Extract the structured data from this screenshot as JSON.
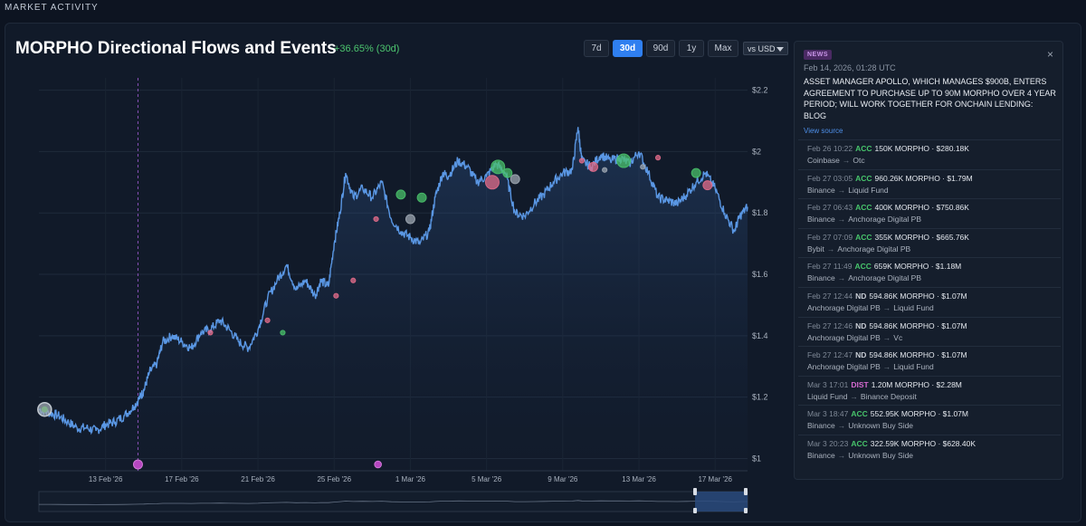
{
  "section_label": "MARKET ACTIVITY",
  "title": "MORPHO Directional Flows and Events",
  "change": "+36.65% (30d)",
  "ranges": [
    "7d",
    "30d",
    "90d",
    "1y",
    "Max"
  ],
  "active_range": "30d",
  "currency_select": "vs USD",
  "colors": {
    "price_line": "#5a97e4",
    "acc": "#47c46b",
    "dist": "#d46ad0",
    "accent": "#2f7ff0",
    "marker_pink": "#e26c8a",
    "marker_green": "#49c06a",
    "marker_gray": "#9ea7b1"
  },
  "news": {
    "badge": "NEWS",
    "date": "Feb 14, 2026, 01:28 UTC",
    "headline": "ASSET MANAGER APOLLO, WHICH MANAGES $900B, ENTERS AGREEMENT TO PURCHASE UP TO 90M MORPHO OVER 4 YEAR PERIOD; WILL WORK TOGETHER FOR ONCHAIN LENDING: BLOG",
    "source": "View source"
  },
  "events": [
    {
      "time": "Feb 26 10:22",
      "type": "ACC",
      "amount": "150K MORPHO · $280.18K",
      "from": "Coinbase",
      "to": "Otc"
    },
    {
      "time": "Feb 27 03:05",
      "type": "ACC",
      "amount": "960.26K MORPHO · $1.79M",
      "from": "Binance",
      "to": "Liquid Fund"
    },
    {
      "time": "Feb 27 06:43",
      "type": "ACC",
      "amount": "400K MORPHO · $750.86K",
      "from": "Binance",
      "to": "Anchorage Digital PB"
    },
    {
      "time": "Feb 27 07:09",
      "type": "ACC",
      "amount": "355K MORPHO · $665.76K",
      "from": "Bybit",
      "to": "Anchorage Digital PB"
    },
    {
      "time": "Feb 27 11:49",
      "type": "ACC",
      "amount": "659K MORPHO · $1.18M",
      "from": "Binance",
      "to": "Anchorage Digital PB"
    },
    {
      "time": "Feb 27 12:44",
      "type": "ND",
      "amount": "594.86K MORPHO · $1.07M",
      "from": "Anchorage Digital PB",
      "to": "Liquid Fund"
    },
    {
      "time": "Feb 27 12:46",
      "type": "ND",
      "amount": "594.86K MORPHO · $1.07M",
      "from": "Anchorage Digital PB",
      "to": "Vc"
    },
    {
      "time": "Feb 27 12:47",
      "type": "ND",
      "amount": "594.86K MORPHO · $1.07M",
      "from": "Anchorage Digital PB",
      "to": "Liquid Fund"
    },
    {
      "time": "Mar 3 17:01",
      "type": "DIST",
      "amount": "1.20M MORPHO · $2.28M",
      "from": "Liquid Fund",
      "to": "Binance Deposit"
    },
    {
      "time": "Mar 3 18:47",
      "type": "ACC",
      "amount": "552.95K MORPHO · $1.07M",
      "from": "Binance",
      "to": "Unknown Buy Side"
    },
    {
      "time": "Mar 3 20:23",
      "type": "ACC",
      "amount": "322.59K MORPHO · $628.40K",
      "from": "Binance",
      "to": "Unknown Buy Side"
    }
  ],
  "chart_data": {
    "type": "line",
    "title": "MORPHO Directional Flows and Events",
    "ylabel": "",
    "xlabel": "",
    "y_ticks": [
      "$2.2",
      "$2",
      "$1.8",
      "$1.6",
      "$1.4",
      "$1.2",
      "$1"
    ],
    "y_tick_values": [
      2.2,
      2.0,
      1.8,
      1.6,
      1.4,
      1.2,
      1.0
    ],
    "ylim": [
      0.96,
      2.24
    ],
    "x_ticks": [
      "13 Feb '26",
      "17 Feb '26",
      "21 Feb '26",
      "25 Feb '26",
      "1 Mar '26",
      "5 Mar '26",
      "9 Mar '26",
      "13 Mar '26",
      "17 Mar '26"
    ],
    "x_tick_values": [
      2,
      6,
      10,
      14,
      18,
      22,
      26,
      30,
      34
    ],
    "xlim": [
      -1.5,
      35.7
    ],
    "grid": true,
    "news_marker_x": 3.7,
    "series": [
      {
        "x": [
          -1.5,
          -1.0,
          -0.5,
          0.0,
          0.5,
          1.0,
          1.5,
          2.0,
          2.5,
          3.0,
          3.5,
          3.8,
          4.0,
          4.3,
          4.7,
          5.0,
          5.5,
          6.0,
          6.5,
          7.0,
          7.5,
          8.0,
          8.5,
          9.0,
          9.5,
          10.0,
          10.5,
          11.0,
          11.5,
          12.0,
          12.5,
          13.0,
          13.3,
          13.7,
          14.0,
          14.3,
          14.6,
          15.0,
          15.5,
          16.0,
          16.5,
          17.0,
          17.5,
          18.0,
          18.5,
          19.0,
          19.3,
          19.7,
          20.0,
          20.5,
          21.0,
          21.5,
          22.0,
          22.5,
          23.0,
          23.5,
          24.0,
          24.5,
          25.0,
          25.5,
          26.0,
          26.5,
          26.8,
          27.0,
          27.5,
          28.0,
          28.5,
          29.0,
          29.5,
          30.0,
          30.5,
          31.0,
          31.5,
          32.0,
          32.5,
          33.0,
          33.5,
          34.0,
          34.5,
          35.0,
          35.3,
          35.7
        ],
        "values": [
          1.16,
          1.15,
          1.14,
          1.12,
          1.1,
          1.1,
          1.09,
          1.11,
          1.12,
          1.14,
          1.17,
          1.2,
          1.22,
          1.28,
          1.31,
          1.38,
          1.4,
          1.38,
          1.36,
          1.41,
          1.42,
          1.45,
          1.42,
          1.38,
          1.36,
          1.42,
          1.52,
          1.58,
          1.63,
          1.55,
          1.58,
          1.53,
          1.58,
          1.56,
          1.7,
          1.8,
          1.93,
          1.85,
          1.88,
          1.85,
          1.9,
          1.78,
          1.74,
          1.72,
          1.7,
          1.74,
          1.85,
          1.93,
          1.92,
          1.97,
          1.95,
          1.9,
          1.92,
          1.96,
          1.93,
          1.8,
          1.79,
          1.83,
          1.86,
          1.9,
          1.93,
          1.94,
          2.08,
          1.97,
          1.95,
          1.99,
          1.97,
          1.98,
          1.96,
          2.0,
          1.93,
          1.85,
          1.84,
          1.83,
          1.86,
          1.9,
          1.93,
          1.88,
          1.8,
          1.74,
          1.79,
          1.82
        ]
      }
    ],
    "event_markers": [
      {
        "x": -1.2,
        "y": 1.16,
        "kind": "gray",
        "size": "large"
      },
      {
        "x": 7.5,
        "y": 1.41,
        "kind": "pink",
        "size": "small"
      },
      {
        "x": 10.5,
        "y": 1.45,
        "kind": "pink",
        "size": "small"
      },
      {
        "x": 11.3,
        "y": 1.41,
        "kind": "green",
        "size": "small"
      },
      {
        "x": 14.1,
        "y": 1.53,
        "kind": "pink",
        "size": "small"
      },
      {
        "x": 15.0,
        "y": 1.58,
        "kind": "pink",
        "size": "small"
      },
      {
        "x": 16.2,
        "y": 1.78,
        "kind": "pink",
        "size": "small"
      },
      {
        "x": 17.5,
        "y": 1.86,
        "kind": "green",
        "size": "medium"
      },
      {
        "x": 18.0,
        "y": 1.78,
        "kind": "gray",
        "size": "medium"
      },
      {
        "x": 18.6,
        "y": 1.85,
        "kind": "green",
        "size": "medium"
      },
      {
        "x": 22.3,
        "y": 1.9,
        "kind": "pink",
        "size": "large"
      },
      {
        "x": 22.6,
        "y": 1.95,
        "kind": "green",
        "size": "large"
      },
      {
        "x": 23.1,
        "y": 1.93,
        "kind": "green",
        "size": "medium"
      },
      {
        "x": 23.5,
        "y": 1.91,
        "kind": "gray",
        "size": "medium"
      },
      {
        "x": 27.0,
        "y": 1.97,
        "kind": "pink",
        "size": "small"
      },
      {
        "x": 27.6,
        "y": 1.95,
        "kind": "pink",
        "size": "medium"
      },
      {
        "x": 28.2,
        "y": 1.94,
        "kind": "gray",
        "size": "small"
      },
      {
        "x": 29.2,
        "y": 1.97,
        "kind": "green",
        "size": "large"
      },
      {
        "x": 30.2,
        "y": 1.95,
        "kind": "gray",
        "size": "small"
      },
      {
        "x": 31.0,
        "y": 1.98,
        "kind": "pink",
        "size": "small"
      },
      {
        "x": 33.0,
        "y": 1.93,
        "kind": "green",
        "size": "medium"
      },
      {
        "x": 33.6,
        "y": 1.89,
        "kind": "pink",
        "size": "medium"
      }
    ],
    "bottom_markers": [
      3.7,
      16.3
    ]
  }
}
